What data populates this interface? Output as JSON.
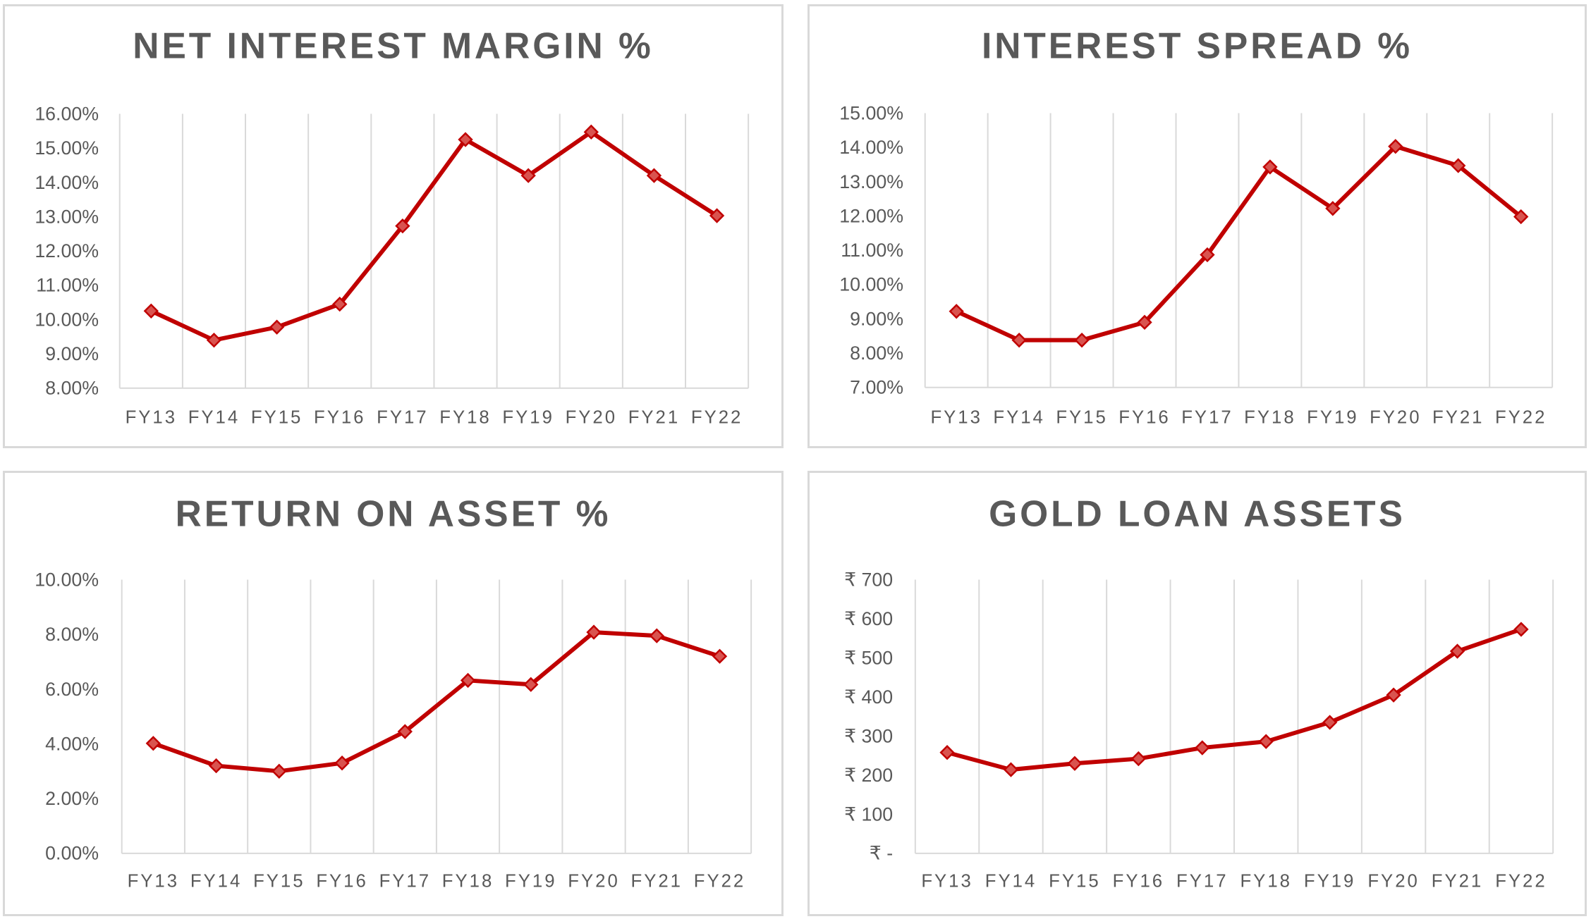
{
  "chart_data": [
    {
      "type": "line",
      "title": "NET INTEREST MARGIN %",
      "categories": [
        "FY13",
        "FY14",
        "FY15",
        "FY16",
        "FY17",
        "FY18",
        "FY19",
        "FY20",
        "FY21",
        "FY22"
      ],
      "series": [
        {
          "values": [
            10.25,
            9.4,
            9.78,
            10.45,
            12.73,
            15.25,
            14.2,
            15.47,
            14.2,
            13.03
          ]
        }
      ],
      "ylim": [
        8,
        16
      ],
      "yticks": [
        8,
        9,
        10,
        11,
        12,
        13,
        14,
        15,
        16
      ],
      "ytick_labels": [
        "8.00%",
        "9.00%",
        "10.00%",
        "11.00%",
        "12.00%",
        "13.00%",
        "14.00%",
        "15.00%",
        "16.00%"
      ],
      "xlabel": "",
      "ylabel": "",
      "grid": "vertical",
      "legend": "none",
      "color": "#c00000"
    },
    {
      "type": "line",
      "title": "INTEREST SPREAD %",
      "categories": [
        "FY13",
        "FY14",
        "FY15",
        "FY16",
        "FY17",
        "FY18",
        "FY19",
        "FY20",
        "FY21",
        "FY22"
      ],
      "series": [
        {
          "values": [
            9.22,
            8.38,
            8.38,
            8.9,
            10.87,
            13.43,
            12.22,
            14.03,
            13.47,
            11.98
          ]
        }
      ],
      "ylim": [
        7,
        15
      ],
      "yticks": [
        7,
        8,
        9,
        10,
        11,
        12,
        13,
        14,
        15
      ],
      "ytick_labels": [
        "7.00%",
        "8.00%",
        "9.00%",
        "10.00%",
        "11.00%",
        "12.00%",
        "13.00%",
        "14.00%",
        "15.00%"
      ],
      "xlabel": "",
      "ylabel": "",
      "grid": "vertical",
      "legend": "none",
      "color": "#c00000"
    },
    {
      "type": "line",
      "title": "RETURN ON ASSET %",
      "categories": [
        "FY13",
        "FY14",
        "FY15",
        "FY16",
        "FY17",
        "FY18",
        "FY19",
        "FY20",
        "FY21",
        "FY22"
      ],
      "series": [
        {
          "values": [
            4.02,
            3.2,
            3.0,
            3.3,
            4.45,
            6.32,
            6.17,
            8.08,
            7.95,
            7.2
          ]
        }
      ],
      "ylim": [
        0,
        10
      ],
      "yticks": [
        0,
        2,
        4,
        6,
        8,
        10
      ],
      "ytick_labels": [
        "0.00%",
        "2.00%",
        "4.00%",
        "6.00%",
        "8.00%",
        "10.00%"
      ],
      "xlabel": "",
      "ylabel": "",
      "grid": "vertical",
      "legend": "none",
      "color": "#c00000"
    },
    {
      "type": "line",
      "title": "GOLD LOAN ASSETS",
      "categories": [
        "FY13",
        "FY14",
        "FY15",
        "FY16",
        "FY17",
        "FY18",
        "FY19",
        "FY20",
        "FY21",
        "FY22"
      ],
      "series": [
        {
          "values": [
            258,
            214,
            230,
            242,
            270,
            286,
            335,
            405,
            517,
            573
          ]
        }
      ],
      "ylim": [
        0,
        700
      ],
      "yticks": [
        0,
        100,
        200,
        300,
        400,
        500,
        600,
        700
      ],
      "ytick_labels": [
        "₹ -",
        "₹ 100",
        "₹ 200",
        "₹ 300",
        "₹ 400",
        "₹ 500",
        "₹ 600",
        "₹ 700"
      ],
      "xlabel": "",
      "ylabel": "",
      "grid": "vertical",
      "legend": "none",
      "color": "#c00000"
    }
  ]
}
